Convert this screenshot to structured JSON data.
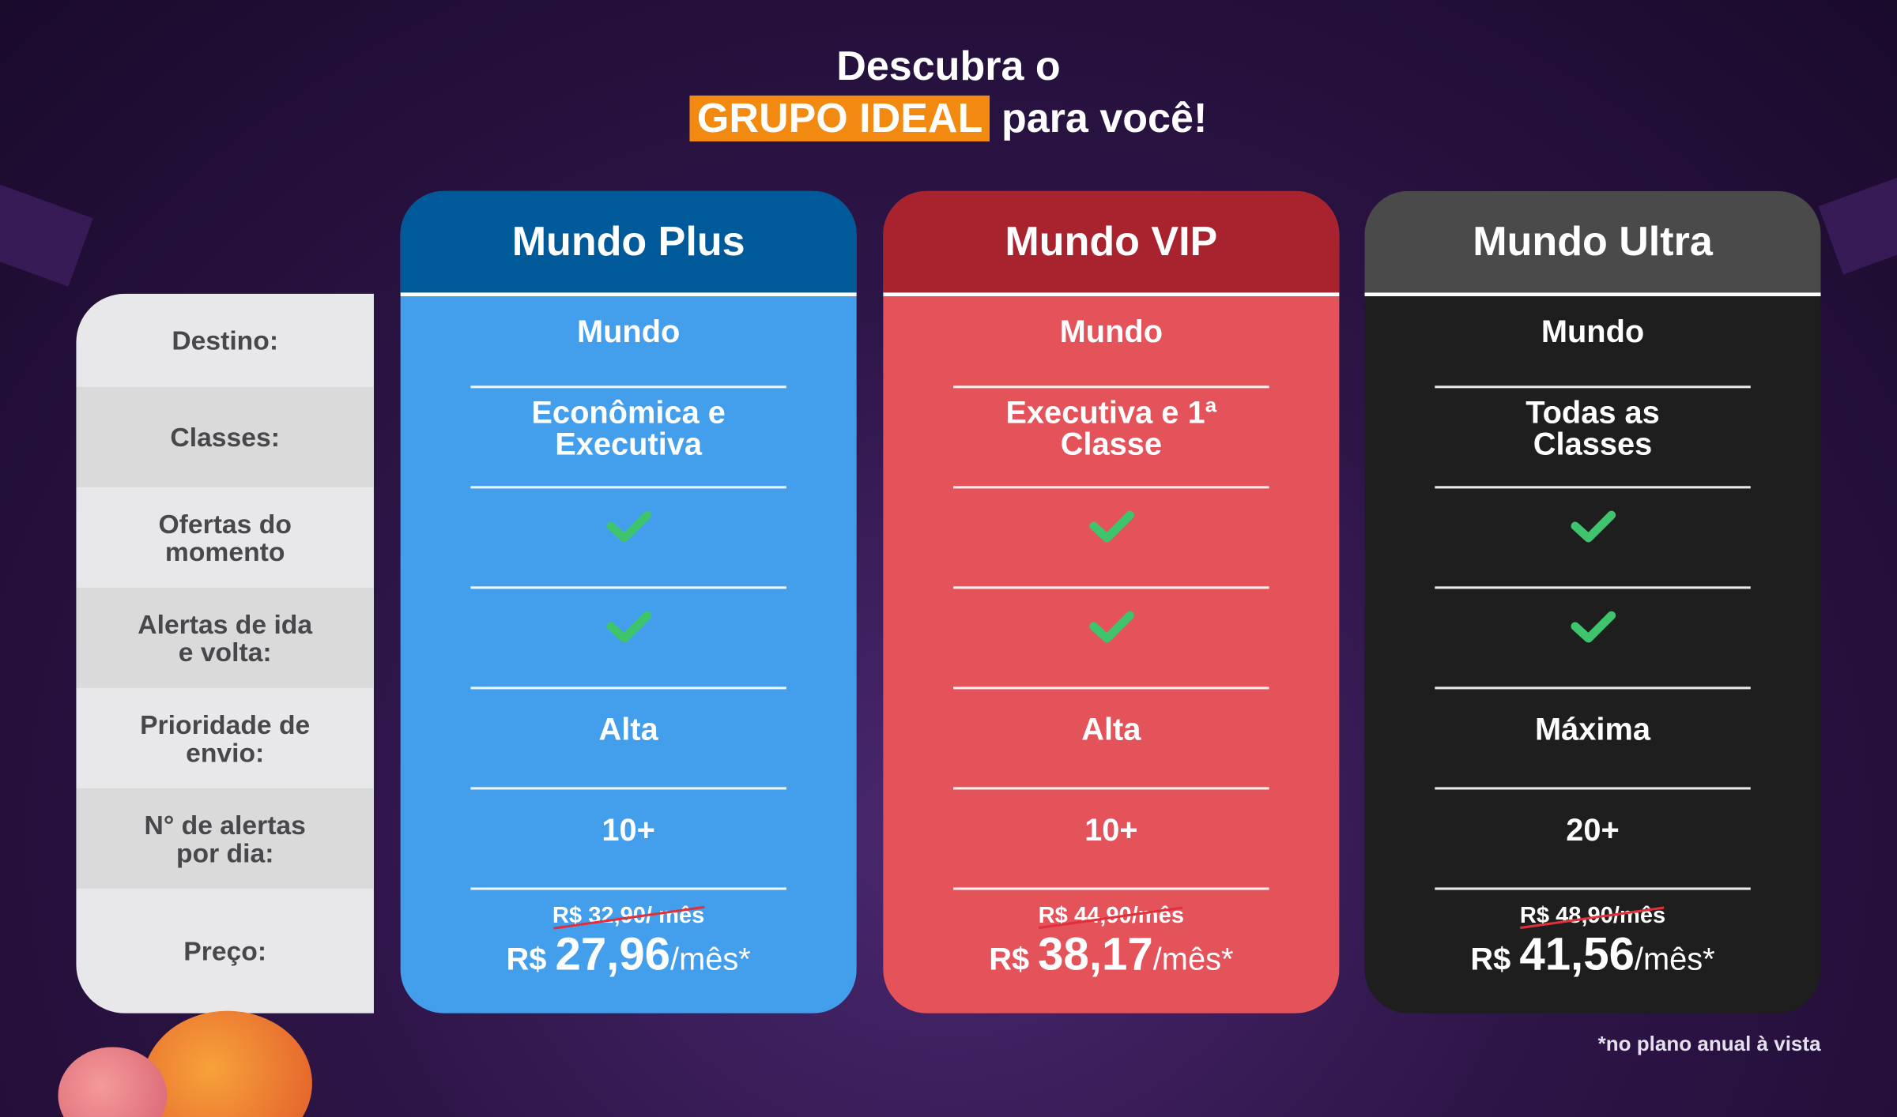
{
  "title": {
    "line1": "Descubra o",
    "highlight": "GRUPO IDEAL",
    "line2_rest": " para você!"
  },
  "colors": {
    "highlight": "#f28a12",
    "check": "#3ec46d"
  },
  "row_labels": [
    "Destino:",
    "Classes:",
    "Ofertas do momento",
    "Alertas de ida e volta:",
    "Prioridade de envio:",
    "N° de alertas por dia:",
    "Preço:"
  ],
  "plans": [
    {
      "name": "Mundo Plus",
      "header_color": "#005a9a",
      "body_color": "#439fec",
      "destino": "Mundo",
      "classes": "Econômica e Executiva",
      "ofertas": "check-icon",
      "alertas": "check-icon",
      "prioridade": "Alta",
      "alertas_dia": "10+",
      "old_price": "R$ 32,90/ mês",
      "price_prefix": "R$ ",
      "price": "27,96",
      "price_suffix": "/mês*"
    },
    {
      "name": "Mundo VIP",
      "header_color": "#a8232d",
      "body_color": "#e4525a",
      "destino": "Mundo",
      "classes": "Executiva e 1ª Classe",
      "ofertas": "check-icon",
      "alertas": "check-icon",
      "prioridade": "Alta",
      "alertas_dia": "10+",
      "old_price": "R$ 44,90/mês",
      "price_prefix": "R$ ",
      "price": "38,17",
      "price_suffix": "/mês*"
    },
    {
      "name": "Mundo Ultra",
      "header_color": "#4a4a4a",
      "body_color": "#1e1e1e",
      "destino": "Mundo",
      "classes": "Todas as Classes",
      "ofertas": "check-icon",
      "alertas": "check-icon",
      "prioridade": "Máxima",
      "alertas_dia": "20+",
      "old_price": "R$ 48,90/mês",
      "price_prefix": "R$ ",
      "price": "41,56",
      "price_suffix": "/mês*"
    }
  ],
  "footnote": "*no plano anual à vista"
}
